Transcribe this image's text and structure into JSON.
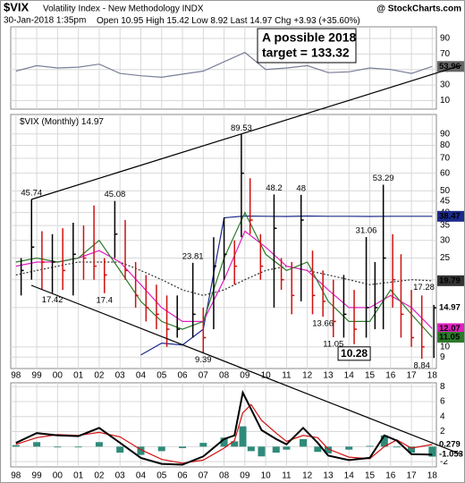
{
  "header": {
    "symbol": "$VIX",
    "name": "Volatility Index - New Methodology INDX",
    "brand": "@ StockCharts.com",
    "date": "30-Jan-2018 1:35pm",
    "open_label": "Open",
    "open": 10.95,
    "high_label": "High",
    "high": 15.42,
    "low_label": "Low",
    "low": 8.92,
    "last_label": "Last",
    "last": 14.97,
    "chg_label": "Chg",
    "chg": "+3.93 (+35.60%)"
  },
  "chart_data": [
    {
      "type": "line",
      "panel": "rsi",
      "ylim": [
        -1,
        105
      ],
      "yticks": [
        90,
        70,
        50,
        30,
        10
      ],
      "color": "#7a7f99",
      "x": [
        1998,
        1999,
        2000,
        2001,
        2002,
        2003,
        2004,
        2005,
        2006,
        2007,
        2008,
        2009,
        2010,
        2011,
        2012,
        2013,
        2014,
        2015,
        2016,
        2017,
        2018
      ],
      "values": [
        48,
        55,
        52,
        53,
        57,
        45,
        42,
        40,
        44,
        48,
        60,
        72,
        50,
        52,
        55,
        46,
        47,
        52,
        50,
        45,
        53.96
      ],
      "annotation": [
        "A possible 2018",
        "target = 133.32"
      ]
    },
    {
      "type": "ohlc",
      "panel": "price",
      "log_scale": true,
      "legend": "$VIX (Monthly)",
      "ylim": [
        8,
        110
      ],
      "yticks": [
        90,
        80,
        70,
        60,
        50,
        45,
        40,
        35,
        30,
        25,
        20,
        15,
        10,
        9
      ],
      "xlim": [
        1997.75,
        2018.2
      ],
      "xticks": [
        {
          "value": 1998,
          "label": "98"
        },
        {
          "value": 1999,
          "label": "99"
        },
        {
          "value": 2000,
          "label": "00"
        },
        {
          "value": 2001,
          "label": "01"
        },
        {
          "value": 2002,
          "label": "02"
        },
        {
          "value": 2003,
          "label": "03"
        },
        {
          "value": 2004,
          "label": "04"
        },
        {
          "value": 2005,
          "label": "05"
        },
        {
          "value": 2006,
          "label": "06"
        },
        {
          "value": 2007,
          "label": "07"
        },
        {
          "value": 2008,
          "label": "08"
        },
        {
          "value": 2009,
          "label": "09"
        },
        {
          "value": 2010,
          "label": "10"
        },
        {
          "value": 2011,
          "label": "11"
        },
        {
          "value": 2012,
          "label": "12"
        },
        {
          "value": 2013,
          "label": "13"
        },
        {
          "value": 2014,
          "label": "14"
        },
        {
          "value": 2015,
          "label": "15"
        },
        {
          "value": 2016,
          "label": "16"
        },
        {
          "value": 2017,
          "label": "17"
        },
        {
          "value": 2018,
          "label": "18"
        }
      ],
      "up_color": "#000000",
      "down_color": "#d01010",
      "x": [
        1998.25,
        1998.75,
        1999.25,
        1999.75,
        2000.25,
        2000.75,
        2001.25,
        2001.75,
        2002.25,
        2002.75,
        2003.25,
        2003.75,
        2004.25,
        2004.75,
        2005.25,
        2005.75,
        2006.5,
        2007.0,
        2007.5,
        2008.0,
        2008.5,
        2008.83,
        2009.25,
        2009.75,
        2010.4,
        2010.75,
        2011.25,
        2011.7,
        2012.25,
        2012.75,
        2013.25,
        2013.75,
        2014.25,
        2014.83,
        2015.25,
        2015.65,
        2016.1,
        2016.5,
        2017.0,
        2017.5,
        2018.08
      ],
      "high": [
        25,
        45.74,
        33,
        32,
        34,
        36,
        35,
        43,
        25,
        45.08,
        37,
        24,
        21,
        19,
        17,
        17,
        23.81,
        15,
        31,
        38,
        30,
        89.53,
        57,
        32,
        48.2,
        25,
        24,
        48.0,
        27,
        22,
        20,
        21,
        18,
        31.06,
        24,
        53.29,
        32,
        26,
        18,
        17,
        15.42
      ],
      "low": [
        17,
        20,
        18,
        17.42,
        18,
        17,
        20,
        20,
        17.4,
        25,
        20,
        15,
        13,
        12,
        10,
        11,
        11,
        9.39,
        12,
        20,
        19,
        31,
        32,
        20,
        15,
        18,
        14,
        16,
        14,
        13.66,
        11.05,
        11,
        10.28,
        11,
        12,
        12,
        15,
        11,
        10,
        8.84,
        8.92
      ],
      "close": [
        22,
        28,
        24,
        24,
        22,
        26,
        25,
        23,
        21,
        32,
        22,
        17,
        15,
        14,
        12,
        12,
        14,
        11,
        23,
        26,
        23,
        60,
        37,
        23,
        34,
        20,
        17,
        37,
        17,
        16,
        13,
        14,
        12,
        15,
        15,
        25,
        20,
        14,
        11,
        10,
        14.97
      ],
      "high_labels": [
        {
          "x": 1998.75,
          "value": 45.74
        },
        {
          "x": 2002.75,
          "value": 45.08
        },
        {
          "x": 2006.5,
          "value": 23.81
        },
        {
          "x": 2008.83,
          "value": 89.53
        },
        {
          "x": 2010.4,
          "value": 48.2
        },
        {
          "x": 2011.7,
          "value": 48.0
        },
        {
          "x": 2014.83,
          "value": 31.06
        },
        {
          "x": 2015.65,
          "value": 53.29
        },
        {
          "x": 2017.6,
          "value": 17.28
        }
      ],
      "low_labels": [
        {
          "x": 1999.75,
          "value": 17.42
        },
        {
          "x": 2002.25,
          "value": 17.4
        },
        {
          "x": 2007.0,
          "value": 9.39
        },
        {
          "x": 2012.75,
          "value": 13.66
        },
        {
          "x": 2013.25,
          "value": 11.05
        },
        {
          "x": 2017.5,
          "value": 8.84
        }
      ],
      "boxed_label": {
        "x": 2014.25,
        "value": 10.28
      },
      "overlays": [
        {
          "color": "#1c2a8c",
          "style": "solid",
          "x": [
            2004,
            2005,
            2006,
            2007,
            2008,
            2009,
            2010,
            2011,
            2012,
            2013,
            2014,
            2015,
            2016,
            2017,
            2018
          ],
          "values": [
            9.2,
            10.4,
            10.2,
            12,
            37.9,
            38.6,
            38.5,
            38.4,
            38.6,
            38.5,
            38.5,
            38.4,
            38.5,
            38.5,
            38.47
          ]
        },
        {
          "color": "#333333",
          "style": "dotted",
          "x": [
            1998,
            1999,
            2000,
            2001,
            2002,
            2003,
            2004,
            2005,
            2006,
            2007,
            2008,
            2009,
            2010,
            2011,
            2012,
            2013,
            2014,
            2015,
            2016,
            2017,
            2018
          ],
          "values": [
            21,
            22,
            23,
            24,
            24,
            24,
            22,
            20,
            18,
            17,
            18,
            20,
            22,
            23,
            22,
            21,
            20,
            19,
            19.5,
            20,
            19.79
          ]
        },
        {
          "color": "#e020c0",
          "style": "solid",
          "x": [
            1998,
            1999,
            2000,
            2001,
            2002,
            2003,
            2004,
            2005,
            2006,
            2007,
            2008,
            2009,
            2010,
            2011,
            2012,
            2013,
            2014,
            2015,
            2016,
            2017,
            2018
          ],
          "values": [
            23,
            24,
            24,
            25,
            27,
            24,
            19,
            15,
            13,
            13,
            20,
            33,
            28,
            23,
            22,
            18,
            15,
            15,
            17,
            15,
            12.07
          ]
        },
        {
          "color": "#2c7a2c",
          "style": "solid",
          "x": [
            1998,
            1999,
            2000,
            2001,
            2002,
            2003,
            2004,
            2005,
            2006,
            2007,
            2008,
            2009,
            2010,
            2011,
            2012,
            2013,
            2014,
            2015,
            2016,
            2017,
            2018
          ],
          "values": [
            24,
            25,
            24,
            25,
            30,
            22,
            16,
            13,
            12,
            13,
            25,
            40,
            26,
            22,
            24,
            16,
            13,
            13,
            18,
            14,
            11.05
          ]
        }
      ]
    },
    {
      "type": "macd",
      "panel": "macd",
      "ylim": [
        -2.7,
        8.5
      ],
      "yticks": [
        8,
        6,
        4,
        2,
        0,
        -2
      ],
      "x": [
        1998,
        1999,
        2000,
        2001,
        2002,
        2003,
        2004,
        2005,
        2006,
        2007,
        2008,
        2008.5,
        2008.9,
        2009.3,
        2009.8,
        2010.5,
        2011,
        2011.8,
        2012.5,
        2013,
        2014,
        2015,
        2015.7,
        2016.3,
        2017,
        2018
      ],
      "macd": [
        0.5,
        1.8,
        1.5,
        1.4,
        2.5,
        0.5,
        -1.5,
        -2.3,
        -2.4,
        -1.3,
        1,
        1.5,
        7.2,
        5,
        2.2,
        1,
        0.3,
        2.5,
        0.5,
        -1.2,
        -1.8,
        -1.5,
        1.5,
        0.8,
        -1,
        -1.053
      ],
      "signal": [
        0.3,
        1.2,
        1.6,
        1.5,
        1.9,
        1.3,
        -0.4,
        -1.7,
        -2.2,
        -1.8,
        -0.2,
        0.8,
        4.5,
        5.6,
        3.5,
        1.8,
        0.7,
        1.5,
        1.2,
        -0.3,
        -1.4,
        -1.6,
        0,
        0.9,
        -0.2,
        0.279
      ],
      "histogram": [
        0.2,
        0.6,
        -0.1,
        -0.1,
        0.6,
        -0.8,
        -1.1,
        -0.6,
        -0.2,
        0.5,
        1.2,
        0.7,
        2.7,
        -0.6,
        -1.3,
        -0.8,
        -0.4,
        1,
        -0.7,
        -0.9,
        -0.4,
        0.1,
        1.5,
        -0.1,
        -0.8,
        -1.332
      ],
      "macd_color": "#000000",
      "signal_color": "#d01010",
      "histogram_color": "#2f8a7a"
    }
  ]
}
